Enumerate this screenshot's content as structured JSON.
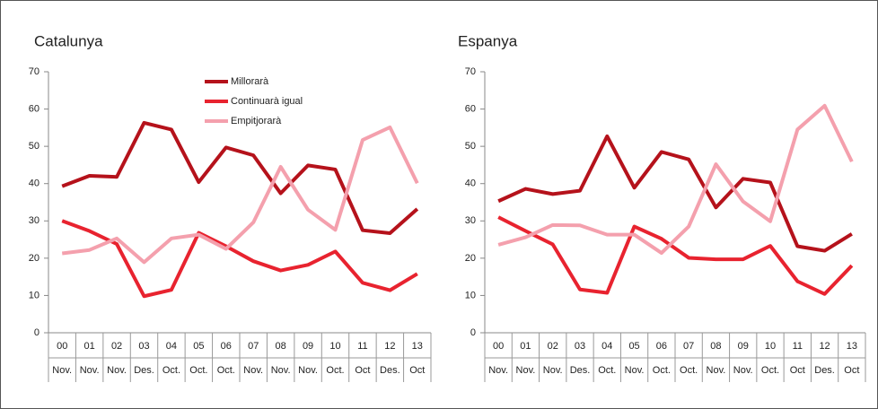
{
  "chart_data": [
    {
      "type": "line",
      "title": "Catalunya",
      "categories": [
        "00",
        "01",
        "02",
        "03",
        "04",
        "05",
        "06",
        "07",
        "08",
        "09",
        "10",
        "11",
        "12",
        "13"
      ],
      "subcategories": [
        "Nov.",
        "Nov.",
        "Nov.",
        "Des.",
        "Oct.",
        "Oct.",
        "Oct.",
        "Nov.",
        "Nov.",
        "Nov.",
        "Oct.",
        "Oct",
        "Des.",
        "Oct"
      ],
      "ylim": [
        0,
        70
      ],
      "yticks": [
        0,
        10,
        20,
        30,
        40,
        50,
        60,
        70
      ],
      "legend": "top-center",
      "series": [
        {
          "name": "Millorarà",
          "color": "#b5121b",
          "values": [
            39.3,
            42.1,
            41.8,
            56.3,
            54.5,
            40.4,
            49.7,
            47.6,
            37.4,
            44.9,
            43.8,
            27.5,
            26.7,
            33.2
          ]
        },
        {
          "name": "Continuarà igual",
          "color": "#e8232f",
          "values": [
            30,
            27.3,
            23.8,
            9.8,
            11.5,
            26.8,
            23.2,
            19.2,
            16.7,
            18.2,
            21.8,
            13.4,
            11.4,
            15.8
          ]
        },
        {
          "name": "Empitjorarà",
          "color": "#f4a0ad",
          "values": [
            21.3,
            22.2,
            25.3,
            18.9,
            25.3,
            26.3,
            22.5,
            29.6,
            44.5,
            33,
            27.6,
            51.7,
            55.1,
            40.1
          ]
        }
      ]
    },
    {
      "type": "line",
      "title": "Espanya",
      "categories": [
        "00",
        "01",
        "02",
        "03",
        "04",
        "05",
        "06",
        "07",
        "08",
        "09",
        "10",
        "11",
        "12",
        "13"
      ],
      "subcategories": [
        "Nov.",
        "Nov.",
        "Nov.",
        "Des.",
        "Oct.",
        "Nov.",
        "Oct.",
        "Oct.",
        "Nov.",
        "Nov.",
        "Oct.",
        "Oct",
        "Des.",
        "Oct"
      ],
      "ylim": [
        0,
        70
      ],
      "yticks": [
        0,
        10,
        20,
        30,
        40,
        50,
        60,
        70
      ],
      "series": [
        {
          "color": "#b5121b",
          "values": [
            35.3,
            38.6,
            37.2,
            38.1,
            52.7,
            38.9,
            48.5,
            46.5,
            33.6,
            41.3,
            40.3,
            23.2,
            22,
            26.5
          ]
        },
        {
          "color": "#e8232f",
          "values": [
            31,
            27.3,
            23.7,
            11.6,
            10.7,
            28.5,
            25.2,
            20.1,
            19.7,
            19.7,
            23.3,
            13.8,
            10.4,
            18
          ]
        },
        {
          "color": "#f4a0ad",
          "values": [
            23.6,
            25.6,
            28.9,
            28.8,
            26.3,
            26.3,
            21.4,
            28.5,
            45.2,
            35.2,
            29.9,
            54.5,
            60.9,
            45.9
          ]
        }
      ]
    }
  ]
}
